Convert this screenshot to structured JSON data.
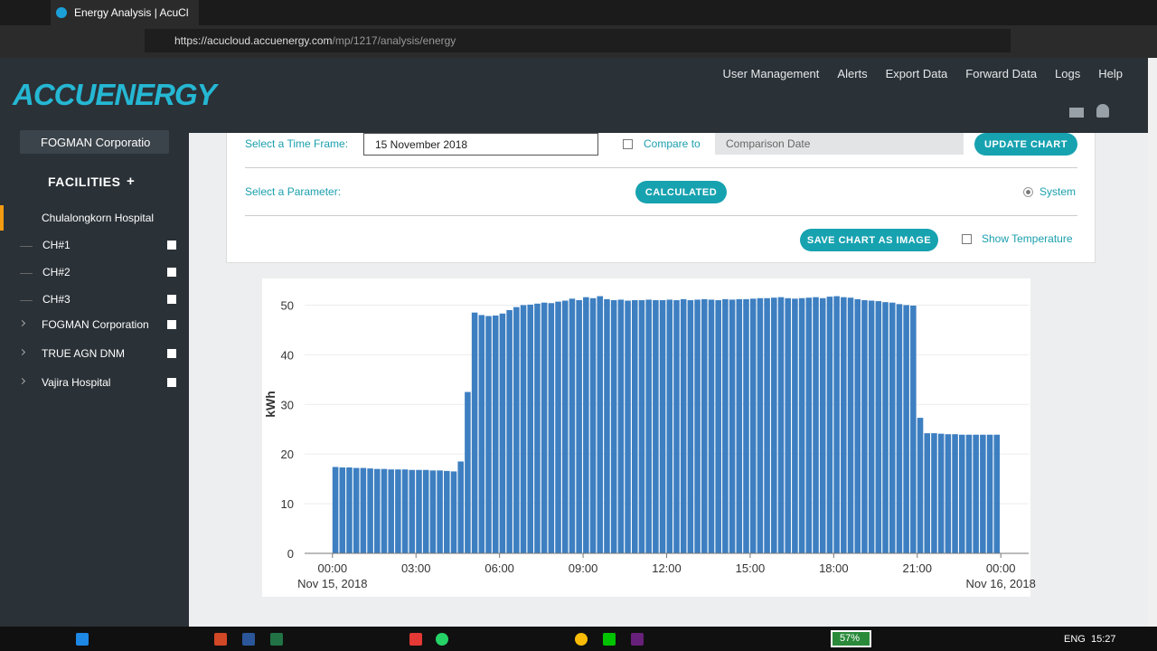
{
  "browser": {
    "tab_title": "Energy Analysis | AcuCl",
    "url_host": "https://acucloud.accuenergy.com",
    "url_path": "/mp/1217/analysis/energy"
  },
  "nav": {
    "logo": "ACCUENERGY",
    "links": [
      "User Management",
      "Alerts",
      "Export Data",
      "Forward Data",
      "Logs",
      "Help"
    ]
  },
  "sidebar": {
    "company": "FOGMAN Corporatio",
    "facilities_title": "FACILITIES",
    "add": "+",
    "facilities": [
      {
        "name": "Chulalongkorn Hospital",
        "children": [
          "CH#1",
          "CH#2",
          "CH#3"
        ]
      },
      {
        "name": "FOGMAN Corporation"
      },
      {
        "name": "TRUE AGN DNM"
      },
      {
        "name": "Vajira Hospital"
      }
    ]
  },
  "form": {
    "time_frame_label": "Select a Time Frame:",
    "time_frame_value": "15 November 2018",
    "compare_label": "Compare to",
    "comparison_placeholder": "Comparison Date",
    "update_button": "UPDATE CHART",
    "parameter_label": "Select a Parameter:",
    "calculated_button": "CALCULATED",
    "system_label": "System",
    "save_button": "SAVE CHART AS IMAGE",
    "temperature_label": "Show Temperature"
  },
  "chart_data": {
    "type": "bar",
    "y_label": "kWh",
    "color": "#3d7fc1",
    "grid": true,
    "x": [
      0,
      0.25,
      0.5,
      0.75,
      1,
      1.25,
      1.5,
      1.75,
      2,
      2.25,
      2.5,
      2.75,
      3,
      3.25,
      3.5,
      3.75,
      4,
      4.25,
      4.5,
      4.75,
      5,
      5.25,
      5.5,
      5.75,
      6,
      6.25,
      6.5,
      6.75,
      7,
      7.25,
      7.5,
      7.75,
      8,
      8.25,
      8.5,
      8.75,
      9,
      9.25,
      9.5,
      9.75,
      10,
      10.25,
      10.5,
      10.75,
      11,
      11.25,
      11.5,
      11.75,
      12,
      12.25,
      12.5,
      12.75,
      13,
      13.25,
      13.5,
      13.75,
      14,
      14.25,
      14.5,
      14.75,
      15,
      15.25,
      15.5,
      15.75,
      16,
      16.25,
      16.5,
      16.75,
      17,
      17.25,
      17.5,
      17.75,
      18,
      18.25,
      18.5,
      18.75,
      19,
      19.25,
      19.5,
      19.75,
      20,
      20.25,
      20.5,
      20.75,
      21,
      21.25,
      21.5,
      21.75,
      22,
      22.25,
      22.5,
      22.75,
      23,
      23.25,
      23.5,
      23.75
    ],
    "values": [
      17.4,
      17.3,
      17.3,
      17.2,
      17.2,
      17.1,
      17.0,
      17.0,
      16.9,
      16.9,
      16.9,
      16.8,
      16.8,
      16.8,
      16.7,
      16.7,
      16.6,
      16.5,
      18.5,
      32.5,
      48.5,
      48.0,
      47.8,
      47.9,
      48.3,
      49.0,
      49.6,
      50.0,
      50.1,
      50.3,
      50.5,
      50.4,
      50.7,
      50.9,
      51.3,
      51.0,
      51.6,
      51.4,
      51.8,
      51.2,
      51.0,
      51.1,
      50.9,
      51.0,
      51.0,
      51.1,
      51.0,
      51.0,
      51.1,
      51.0,
      51.2,
      51.0,
      51.1,
      51.2,
      51.1,
      51.0,
      51.2,
      51.1,
      51.2,
      51.2,
      51.3,
      51.4,
      51.4,
      51.5,
      51.6,
      51.4,
      51.3,
      51.4,
      51.5,
      51.6,
      51.4,
      51.7,
      51.8,
      51.6,
      51.5,
      51.2,
      51.0,
      50.9,
      50.8,
      50.6,
      50.5,
      50.2,
      50.0,
      49.9,
      27.3,
      24.2,
      24.2,
      24.1,
      24.0,
      24.0,
      23.9,
      23.9,
      23.9,
      23.9,
      23.9,
      23.9
    ],
    "xlim": [
      -1,
      25
    ],
    "ylim": [
      0,
      55
    ],
    "yticks": [
      0,
      10,
      20,
      30,
      40,
      50
    ],
    "xticks": [
      {
        "value": 0,
        "label": "00:00"
      },
      {
        "value": 3,
        "label": "03:00"
      },
      {
        "value": 6,
        "label": "06:00"
      },
      {
        "value": 9,
        "label": "09:00"
      },
      {
        "value": 12,
        "label": "12:00"
      },
      {
        "value": 15,
        "label": "15:00"
      },
      {
        "value": 18,
        "label": "18:00"
      },
      {
        "value": 21,
        "label": "21:00"
      },
      {
        "value": 24,
        "label": "00:00"
      }
    ],
    "x_date_labels": [
      {
        "value": 0,
        "label": "Nov 15, 2018"
      },
      {
        "value": 24,
        "label": "Nov 16, 2018"
      }
    ]
  },
  "taskbar": {
    "battery": "57%",
    "language": "ENG",
    "time": "15:27"
  }
}
